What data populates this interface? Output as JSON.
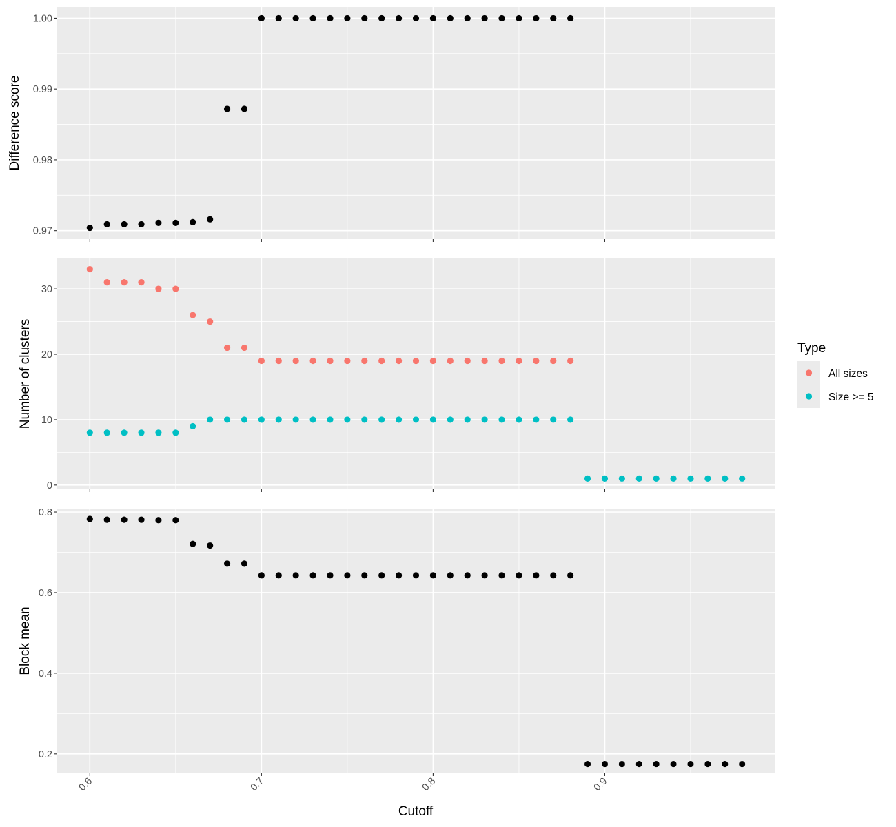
{
  "chart_data": {
    "type": "scatter",
    "xlabel": "Cutoff",
    "x_ticks": [
      0.6,
      0.7,
      0.8,
      0.9
    ],
    "xlim": [
      0.581,
      0.999
    ],
    "panels": [
      {
        "id": "difference",
        "ylabel": "Difference score",
        "ylim": [
          0.9688,
          1.0016
        ],
        "y_ticks": [
          0.97,
          0.98,
          0.99,
          1.0
        ],
        "y_tick_labels": [
          "0.97",
          "0.98",
          "0.99",
          "1.00"
        ],
        "series": [
          {
            "color": "#000000",
            "points": [
              [
                0.6,
                0.9704
              ],
              [
                0.61,
                0.9709
              ],
              [
                0.62,
                0.9709
              ],
              [
                0.63,
                0.9709
              ],
              [
                0.64,
                0.9711
              ],
              [
                0.65,
                0.9711
              ],
              [
                0.66,
                0.9712
              ],
              [
                0.67,
                0.9716
              ],
              [
                0.68,
                0.9872
              ],
              [
                0.69,
                0.9872
              ],
              [
                0.7,
                1.0
              ],
              [
                0.71,
                1.0
              ],
              [
                0.72,
                1.0
              ],
              [
                0.73,
                1.0
              ],
              [
                0.74,
                1.0
              ],
              [
                0.75,
                1.0
              ],
              [
                0.76,
                1.0
              ],
              [
                0.77,
                1.0
              ],
              [
                0.78,
                1.0
              ],
              [
                0.79,
                1.0
              ],
              [
                0.8,
                1.0
              ],
              [
                0.81,
                1.0
              ],
              [
                0.82,
                1.0
              ],
              [
                0.83,
                1.0
              ],
              [
                0.84,
                1.0
              ],
              [
                0.85,
                1.0
              ],
              [
                0.86,
                1.0
              ],
              [
                0.87,
                1.0
              ],
              [
                0.88,
                1.0
              ]
            ]
          }
        ]
      },
      {
        "id": "clusters",
        "ylabel": "Number of clusters",
        "ylim": [
          -0.65,
          34.65
        ],
        "y_ticks": [
          0,
          10,
          20,
          30
        ],
        "y_tick_labels": [
          "0",
          "10",
          "20",
          "30"
        ],
        "series": [
          {
            "name": "All sizes",
            "color": "#F8766D",
            "points": [
              [
                0.6,
                33
              ],
              [
                0.61,
                31
              ],
              [
                0.62,
                31
              ],
              [
                0.63,
                31
              ],
              [
                0.64,
                30
              ],
              [
                0.65,
                30
              ],
              [
                0.66,
                26
              ],
              [
                0.67,
                25
              ],
              [
                0.68,
                21
              ],
              [
                0.69,
                21
              ],
              [
                0.7,
                19
              ],
              [
                0.71,
                19
              ],
              [
                0.72,
                19
              ],
              [
                0.73,
                19
              ],
              [
                0.74,
                19
              ],
              [
                0.75,
                19
              ],
              [
                0.76,
                19
              ],
              [
                0.77,
                19
              ],
              [
                0.78,
                19
              ],
              [
                0.79,
                19
              ],
              [
                0.8,
                19
              ],
              [
                0.81,
                19
              ],
              [
                0.82,
                19
              ],
              [
                0.83,
                19
              ],
              [
                0.84,
                19
              ],
              [
                0.85,
                19
              ],
              [
                0.86,
                19
              ],
              [
                0.87,
                19
              ],
              [
                0.88,
                19
              ]
            ]
          },
          {
            "name": "Size >= 5",
            "color": "#00BFC4",
            "points": [
              [
                0.6,
                8
              ],
              [
                0.61,
                8
              ],
              [
                0.62,
                8
              ],
              [
                0.63,
                8
              ],
              [
                0.64,
                8
              ],
              [
                0.65,
                8
              ],
              [
                0.66,
                9
              ],
              [
                0.67,
                10
              ],
              [
                0.68,
                10
              ],
              [
                0.69,
                10
              ],
              [
                0.7,
                10
              ],
              [
                0.71,
                10
              ],
              [
                0.72,
                10
              ],
              [
                0.73,
                10
              ],
              [
                0.74,
                10
              ],
              [
                0.75,
                10
              ],
              [
                0.76,
                10
              ],
              [
                0.77,
                10
              ],
              [
                0.78,
                10
              ],
              [
                0.79,
                10
              ],
              [
                0.8,
                10
              ],
              [
                0.81,
                10
              ],
              [
                0.82,
                10
              ],
              [
                0.83,
                10
              ],
              [
                0.84,
                10
              ],
              [
                0.85,
                10
              ],
              [
                0.86,
                10
              ],
              [
                0.87,
                10
              ],
              [
                0.88,
                10
              ],
              [
                0.89,
                1
              ],
              [
                0.9,
                1
              ],
              [
                0.91,
                1
              ],
              [
                0.92,
                1
              ],
              [
                0.93,
                1
              ],
              [
                0.94,
                1
              ],
              [
                0.95,
                1
              ],
              [
                0.96,
                1
              ],
              [
                0.97,
                1
              ],
              [
                0.98,
                1
              ]
            ]
          }
        ]
      },
      {
        "id": "blockmean",
        "ylabel": "Block mean",
        "ylim": [
          0.1518,
          0.8086
        ],
        "y_ticks": [
          0.2,
          0.4,
          0.6,
          0.8
        ],
        "y_tick_labels": [
          "0.2",
          "0.4",
          "0.6",
          "0.8"
        ],
        "series": [
          {
            "color": "#000000",
            "points": [
              [
                0.6,
                0.783
              ],
              [
                0.61,
                0.781
              ],
              [
                0.62,
                0.781
              ],
              [
                0.63,
                0.781
              ],
              [
                0.64,
                0.78
              ],
              [
                0.65,
                0.78
              ],
              [
                0.66,
                0.721
              ],
              [
                0.67,
                0.717
              ],
              [
                0.68,
                0.672
              ],
              [
                0.69,
                0.672
              ],
              [
                0.7,
                0.643
              ],
              [
                0.71,
                0.643
              ],
              [
                0.72,
                0.643
              ],
              [
                0.73,
                0.643
              ],
              [
                0.74,
                0.643
              ],
              [
                0.75,
                0.643
              ],
              [
                0.76,
                0.643
              ],
              [
                0.77,
                0.643
              ],
              [
                0.78,
                0.643
              ],
              [
                0.79,
                0.643
              ],
              [
                0.8,
                0.643
              ],
              [
                0.81,
                0.643
              ],
              [
                0.82,
                0.643
              ],
              [
                0.83,
                0.643
              ],
              [
                0.84,
                0.643
              ],
              [
                0.85,
                0.643
              ],
              [
                0.86,
                0.643
              ],
              [
                0.87,
                0.643
              ],
              [
                0.88,
                0.643
              ],
              [
                0.89,
                0.1748
              ],
              [
                0.9,
                0.1748
              ],
              [
                0.91,
                0.1748
              ],
              [
                0.92,
                0.1748
              ],
              [
                0.93,
                0.1748
              ],
              [
                0.94,
                0.1748
              ],
              [
                0.95,
                0.1748
              ],
              [
                0.96,
                0.1748
              ],
              [
                0.97,
                0.1748
              ],
              [
                0.98,
                0.1748
              ]
            ]
          }
        ]
      }
    ],
    "legend": {
      "title": "Type",
      "placement": "right",
      "entries": [
        {
          "label": "All sizes",
          "color": "#F8766D"
        },
        {
          "label": "Size >= 5",
          "color": "#00BFC4"
        }
      ]
    },
    "grid": true,
    "panel_background": "#EBEBEB",
    "grid_color": "#FFFFFF"
  }
}
